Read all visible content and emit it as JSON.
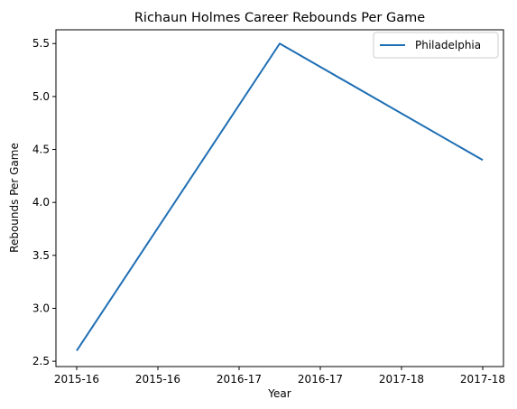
{
  "chart_data": {
    "type": "line",
    "title": "Richaun Holmes Career Rebounds Per Game",
    "xlabel": "Year",
    "ylabel": "Rebounds Per Game",
    "x_tick_labels": [
      "2015-16",
      "2015-16",
      "2016-17",
      "2016-17",
      "2017-18",
      "2017-18"
    ],
    "ylim": [
      2.45,
      5.63
    ],
    "yticks": [
      2.5,
      3.0,
      3.5,
      4.0,
      4.5,
      5.0,
      5.5
    ],
    "ytick_labels": [
      "2.5",
      "3.0",
      "3.5",
      "4.0",
      "4.5",
      "5.0",
      "5.5"
    ],
    "grid": false,
    "legend_position": "top-right",
    "series": [
      {
        "name": "Philadelphia",
        "color": "#1f6fb4",
        "points": [
          {
            "x": "2015-16",
            "y": 2.6
          },
          {
            "x": "2016-17",
            "y": 5.5
          },
          {
            "x": "2017-18",
            "y": 4.4
          }
        ]
      }
    ]
  }
}
